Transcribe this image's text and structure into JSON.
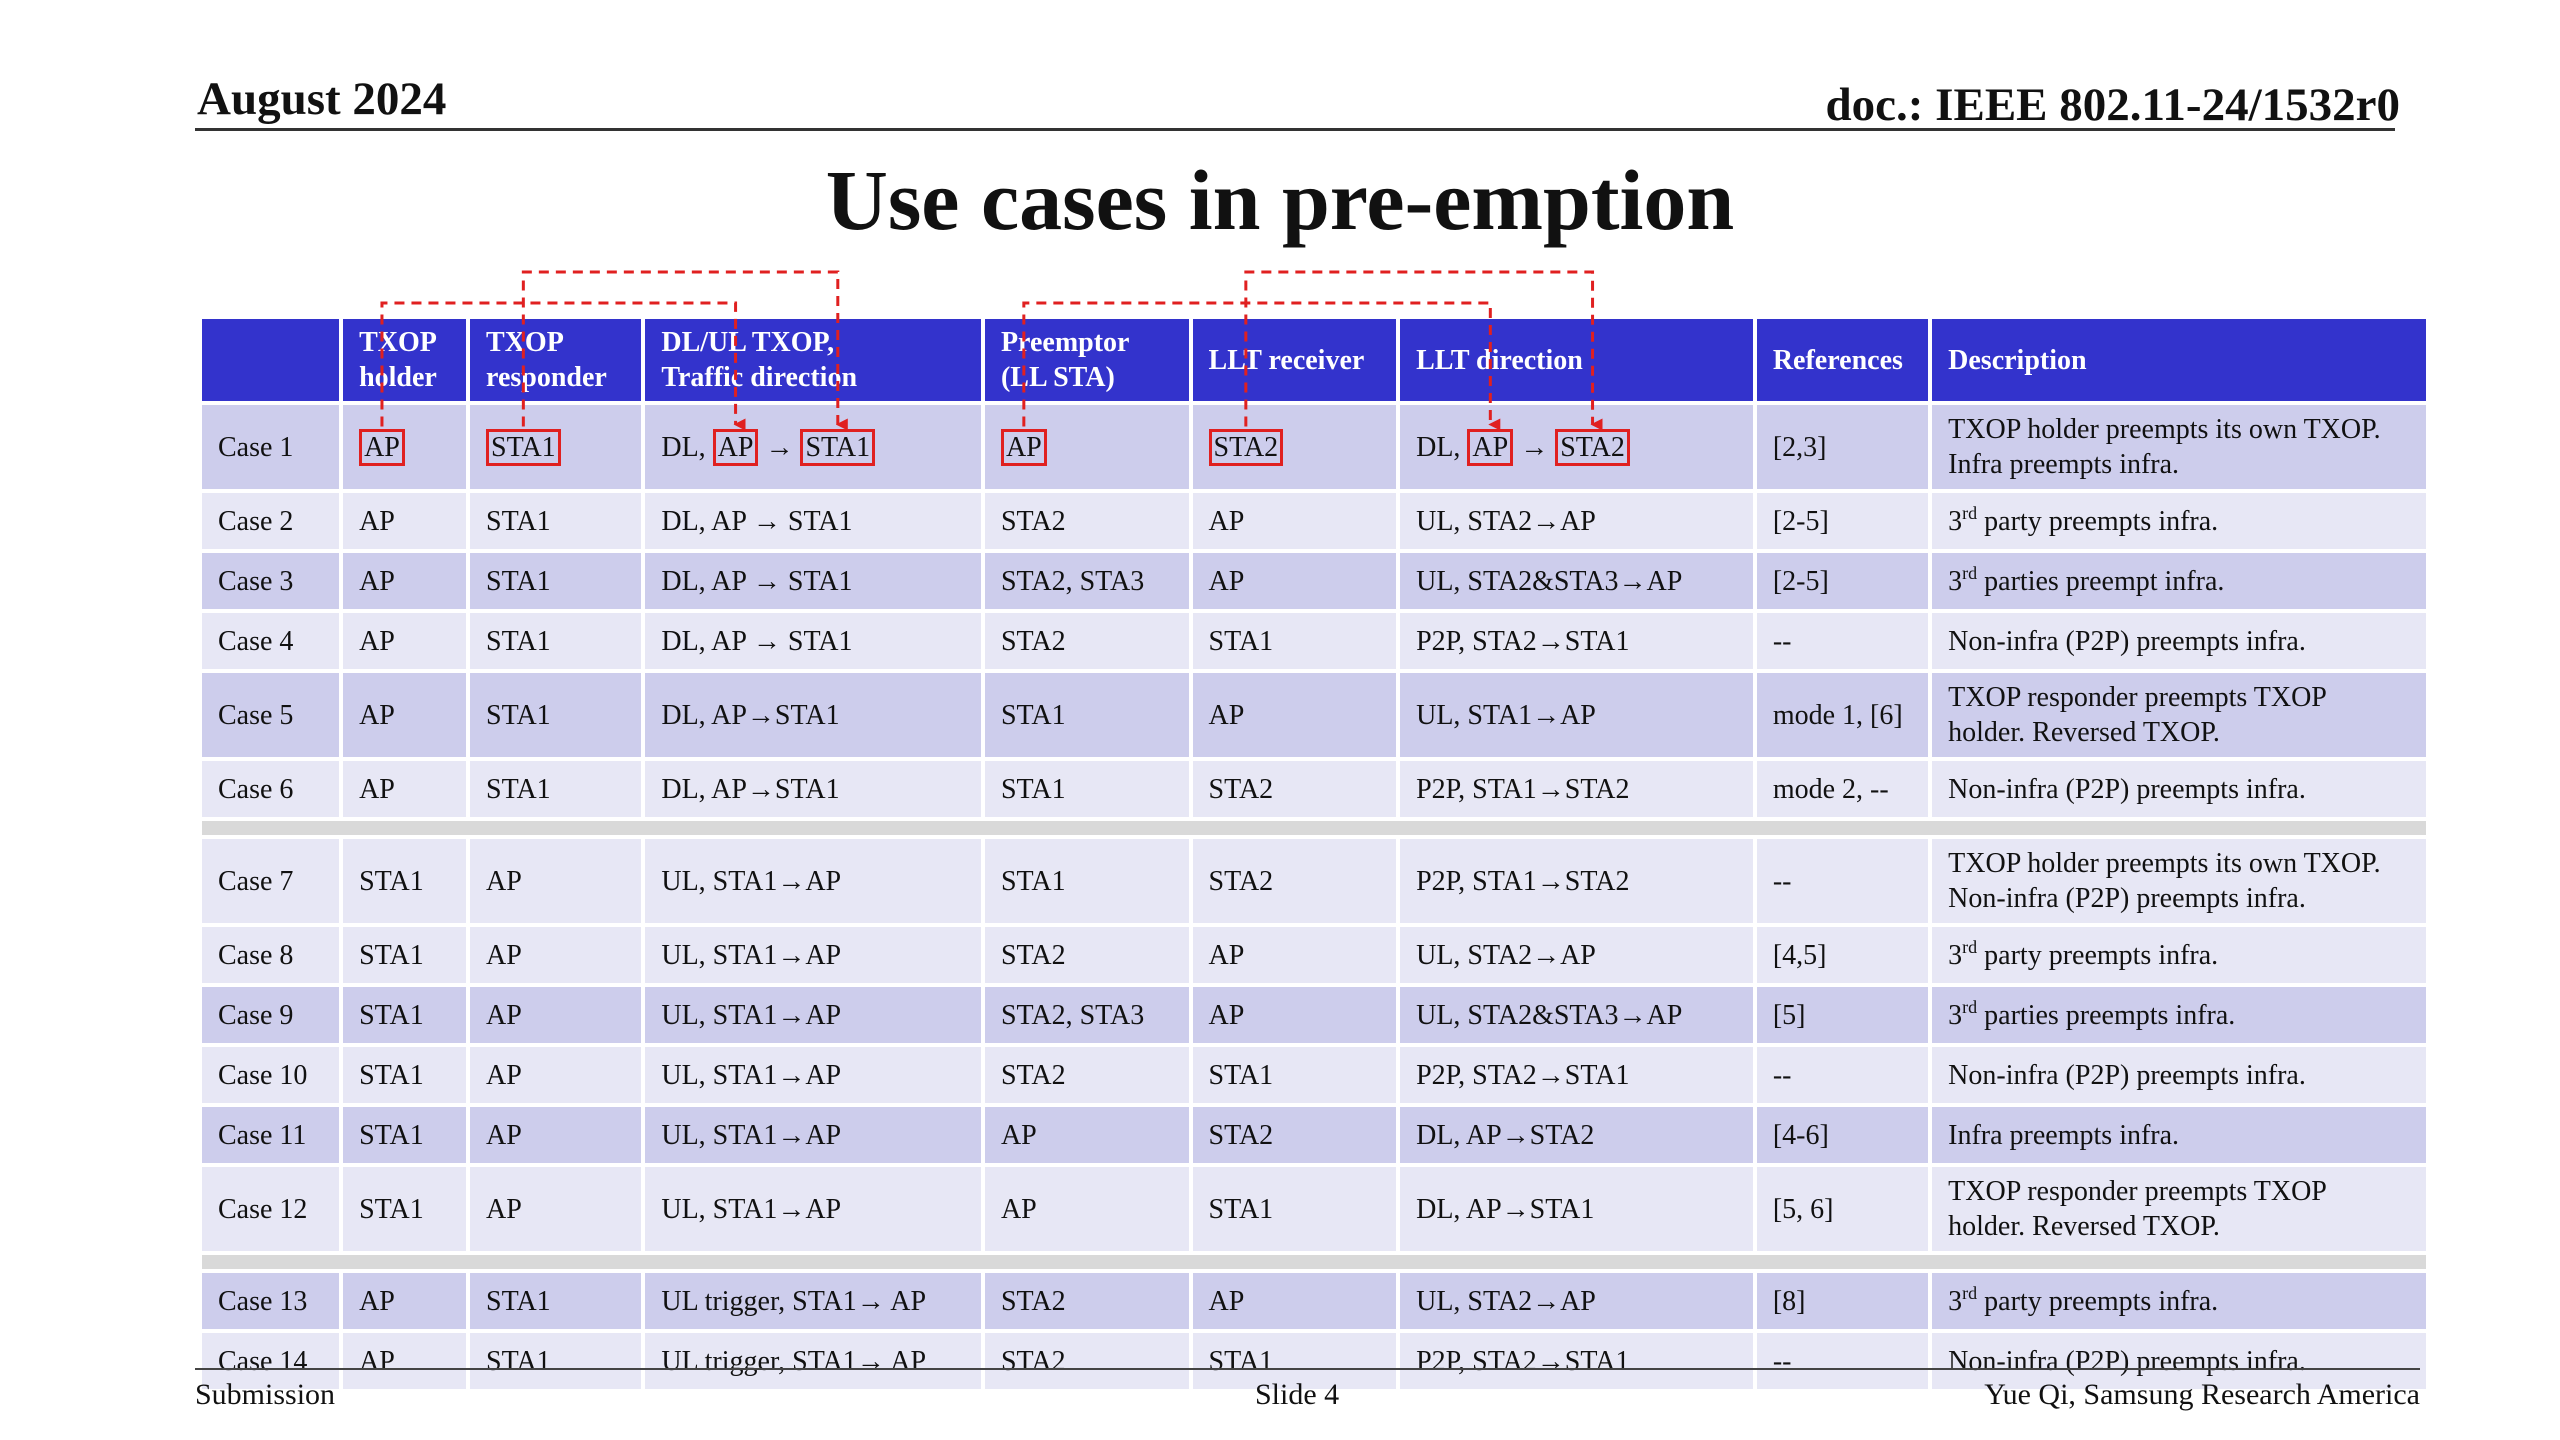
{
  "header": {
    "date": "August 2024",
    "doc": "doc.: IEEE 802.11-24/1532r0"
  },
  "title": "Use cases in pre-emption",
  "table": {
    "columns": [
      "",
      "TXOP holder",
      "TXOP responder",
      "DL/UL TXOP, Traffic direction",
      "Preemptor (LL STA)",
      "LLT receiver",
      "LLT direction",
      "References",
      "Description"
    ],
    "column_lines": [
      [
        "",
        ""
      ],
      [
        "TXOP",
        "holder"
      ],
      [
        "TXOP",
        "responder"
      ],
      [
        "DL/UL TXOP,",
        "Traffic direction"
      ],
      [
        "Preemptor",
        "(LL STA)"
      ],
      [
        "LLT receiver"
      ],
      [
        "LLT direction"
      ],
      [
        "References"
      ],
      [
        "Description"
      ]
    ],
    "case1": {
      "case": "Case 1",
      "holder": "AP",
      "responder": "STA1",
      "traffic_prefix": "DL,",
      "traffic_from": "AP",
      "traffic_arrow": "→",
      "traffic_to": "STA1",
      "preemptor": "AP",
      "llt_receiver": "STA2",
      "llt_prefix": "DL,",
      "llt_from": "AP",
      "llt_arrow": "→",
      "llt_to": "STA2",
      "refs": "[2,3]",
      "desc1": "TXOP holder preempts its own TXOP.",
      "desc2": "Infra preempts infra."
    },
    "rows": [
      {
        "case": "Case 2",
        "holder": "AP",
        "responder": "STA1",
        "traffic": "DL, AP → STA1",
        "preemptor": "STA2",
        "llt_receiver": "AP",
        "llt_direction": "UL, STA2→AP",
        "refs": "[2-5]",
        "desc_ord": "3",
        "desc_sup": "rd",
        "desc": " party preempts infra."
      },
      {
        "case": "Case 3",
        "holder": "AP",
        "responder": "STA1",
        "traffic": "DL, AP → STA1",
        "preemptor": "STA2, STA3",
        "llt_receiver": "AP",
        "llt_direction": "UL, STA2&STA3→AP",
        "refs": "[2-5]",
        "desc_ord": "3",
        "desc_sup": "rd",
        "desc": " parties preempt infra."
      },
      {
        "case": "Case 4",
        "holder": "AP",
        "responder": "STA1",
        "traffic": "DL, AP → STA1",
        "preemptor": "STA2",
        "llt_receiver": "STA1",
        "llt_direction": "P2P, STA2→STA1",
        "refs": "--",
        "desc": "Non-infra (P2P) preempts infra."
      },
      {
        "case": "Case 5",
        "holder": "AP",
        "responder": "STA1",
        "traffic": "DL, AP→STA1",
        "preemptor": "STA1",
        "llt_receiver": "AP",
        "llt_direction": "UL, STA1→AP",
        "refs": "mode 1, [6]",
        "desc1": "TXOP responder preempts TXOP",
        "desc2": "holder. Reversed TXOP."
      },
      {
        "case": "Case 6",
        "holder": "AP",
        "responder": "STA1",
        "traffic": "DL, AP→STA1",
        "preemptor": "STA1",
        "llt_receiver": "STA2",
        "llt_direction": "P2P, STA1→STA2",
        "refs": "mode 2, --",
        "desc": "Non-infra (P2P) preempts infra."
      },
      {
        "case": "Case 7",
        "holder": "STA1",
        "responder": "AP",
        "traffic": "UL, STA1→AP",
        "preemptor": "STA1",
        "llt_receiver": "STA2",
        "llt_direction": "P2P, STA1→STA2",
        "refs": "--",
        "desc1": "TXOP holder preempts its own TXOP.",
        "desc2": "Non-infra (P2P) preempts infra."
      },
      {
        "case": "Case 8",
        "holder": "STA1",
        "responder": "AP",
        "traffic": "UL, STA1→AP",
        "preemptor": "STA2",
        "llt_receiver": "AP",
        "llt_direction": "UL, STA2→AP",
        "refs": "[4,5]",
        "desc_ord": "3",
        "desc_sup": "rd",
        "desc": " party preempts infra."
      },
      {
        "case": "Case 9",
        "holder": "STA1",
        "responder": "AP",
        "traffic": "UL, STA1→AP",
        "preemptor": "STA2, STA3",
        "llt_receiver": "AP",
        "llt_direction": "UL, STA2&STA3→AP",
        "refs": "[5]",
        "desc_ord": "3",
        "desc_sup": "rd",
        "desc": " parties preempts infra."
      },
      {
        "case": "Case 10",
        "holder": "STA1",
        "responder": "AP",
        "traffic": "UL, STA1→AP",
        "preemptor": "STA2",
        "llt_receiver": "STA1",
        "llt_direction": "P2P, STA2→STA1",
        "refs": "--",
        "desc": "Non-infra (P2P) preempts infra."
      },
      {
        "case": "Case 11",
        "holder": "STA1",
        "responder": "AP",
        "traffic": "UL, STA1→AP",
        "preemptor": "AP",
        "llt_receiver": "STA2",
        "llt_direction": "DL, AP→STA2",
        "refs": "[4-6]",
        "desc": "Infra preempts infra."
      },
      {
        "case": "Case 12",
        "holder": "STA1",
        "responder": "AP",
        "traffic": "UL, STA1→AP",
        "preemptor": "AP",
        "llt_receiver": "STA1",
        "llt_direction": "DL, AP→STA1",
        "refs": "[5, 6]",
        "desc1": "TXOP responder preempts TXOP",
        "desc2": "holder. Reversed TXOP."
      },
      {
        "case": "Case 13",
        "holder": "AP",
        "responder": "STA1",
        "traffic": "UL trigger, STA1→ AP",
        "preemptor": "STA2",
        "llt_receiver": "AP",
        "llt_direction": "UL, STA2→AP",
        "refs": "[8]",
        "desc_ord": "3",
        "desc_sup": "rd",
        "desc": " party preempts infra."
      },
      {
        "case": "Case 14",
        "holder": "AP",
        "responder": "STA1",
        "traffic": "UL trigger, STA1→ AP",
        "preemptor": "STA2",
        "llt_receiver": "STA1",
        "llt_direction": "P2P, STA2→STA1",
        "refs": "--",
        "desc": "Non-infra (P2P) preempts infra."
      }
    ]
  },
  "footer": {
    "left": "Submission",
    "center": "Slide 4",
    "right": "Yue Qi, Samsung Research America"
  },
  "colors": {
    "header_bg": "#3333cc",
    "row_dark": "#cdcdec",
    "row_light": "#e7e7f5",
    "separator": "#d9d9d9",
    "highlight": "#e02020"
  }
}
